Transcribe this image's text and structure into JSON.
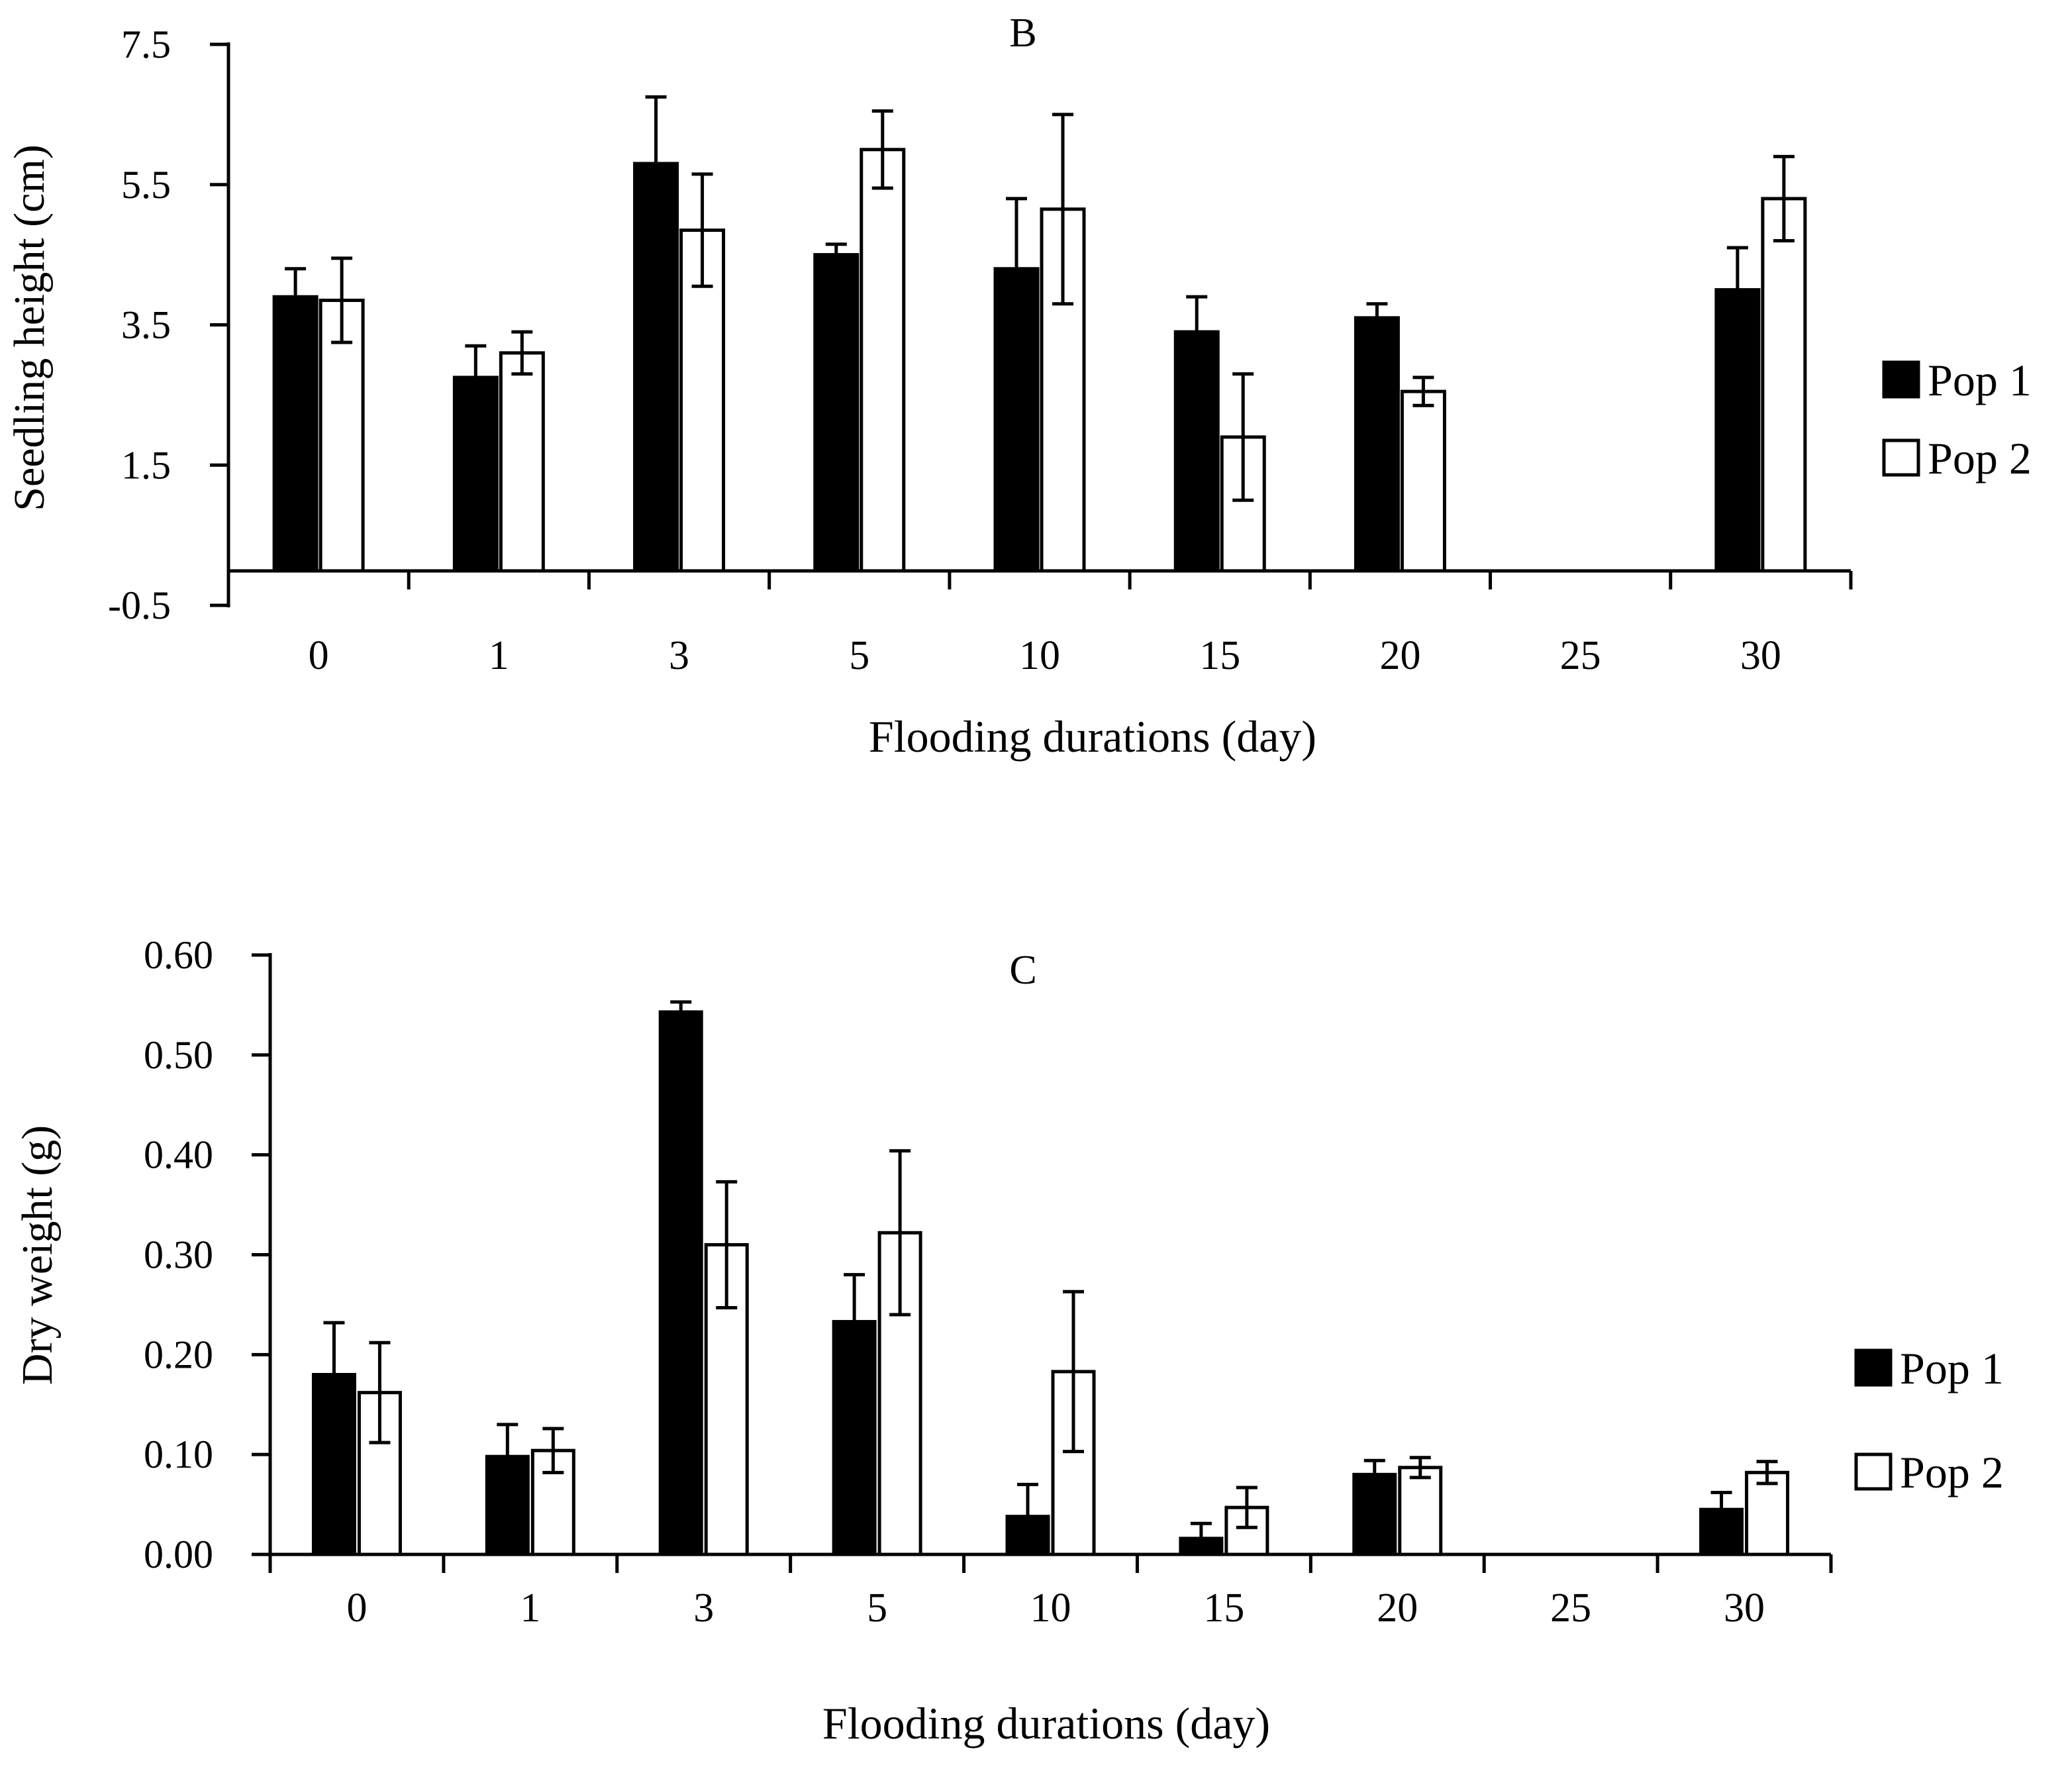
{
  "chart_data": [
    {
      "type": "bar",
      "title": "B",
      "xlabel": "Flooding durations (day)",
      "ylabel": "Seedling height (cm)",
      "ylim": [
        -0.5,
        7.5
      ],
      "yticks": [
        -0.5,
        1.5,
        3.5,
        5.5,
        7.5
      ],
      "ytick_labels": [
        "-0.5",
        "1.5",
        "3.5",
        "5.5",
        "7.5"
      ],
      "categories": [
        "0",
        "1",
        "3",
        "5",
        "10",
        "15",
        "20",
        "25",
        "30"
      ],
      "series": [
        {
          "name": "Pop 1",
          "fill": "#000000",
          "values": [
            3.9,
            2.75,
            5.8,
            4.5,
            4.3,
            3.4,
            3.6,
            null,
            4.0
          ],
          "errors": [
            0.4,
            0.45,
            0.95,
            0.15,
            1.0,
            0.5,
            0.2,
            null,
            0.6
          ]
        },
        {
          "name": "Pop 2",
          "fill": "#ffffff",
          "values": [
            3.85,
            3.1,
            4.85,
            6.0,
            5.15,
            1.9,
            2.55,
            null,
            5.3
          ],
          "errors": [
            0.6,
            0.3,
            0.8,
            0.55,
            1.35,
            0.9,
            0.2,
            null,
            0.6
          ]
        }
      ],
      "legend": {
        "placement": "right",
        "entries": [
          "Pop 1",
          "Pop 2"
        ]
      }
    },
    {
      "type": "bar",
      "title": "C",
      "xlabel": "Flooding durations (day)",
      "ylabel": "Dry weight (g)",
      "ylim": [
        0,
        0.6
      ],
      "yticks": [
        0,
        0.1,
        0.2,
        0.3,
        0.4,
        0.5,
        0.6
      ],
      "ytick_labels": [
        "0.00",
        "0.10",
        "0.20",
        "0.30",
        "0.40",
        "0.50",
        "0.60"
      ],
      "categories": [
        "0",
        "1",
        "3",
        "5",
        "10",
        "15",
        "20",
        "25",
        "30"
      ],
      "series": [
        {
          "name": "Pop 1",
          "fill": "#000000",
          "values": [
            0.18,
            0.098,
            0.543,
            0.233,
            0.038,
            0.016,
            0.08,
            null,
            0.045
          ],
          "errors": [
            0.052,
            0.032,
            0.01,
            0.047,
            0.032,
            0.015,
            0.014,
            null,
            0.017
          ]
        },
        {
          "name": "Pop 2",
          "fill": "#ffffff",
          "values": [
            0.162,
            0.104,
            0.31,
            0.322,
            0.183,
            0.047,
            0.087,
            null,
            0.082
          ],
          "errors": [
            0.05,
            0.022,
            0.063,
            0.082,
            0.08,
            0.02,
            0.01,
            null,
            0.011
          ]
        }
      ],
      "legend": {
        "placement": "right",
        "entries": [
          "Pop 1",
          "Pop 2"
        ]
      }
    }
  ]
}
